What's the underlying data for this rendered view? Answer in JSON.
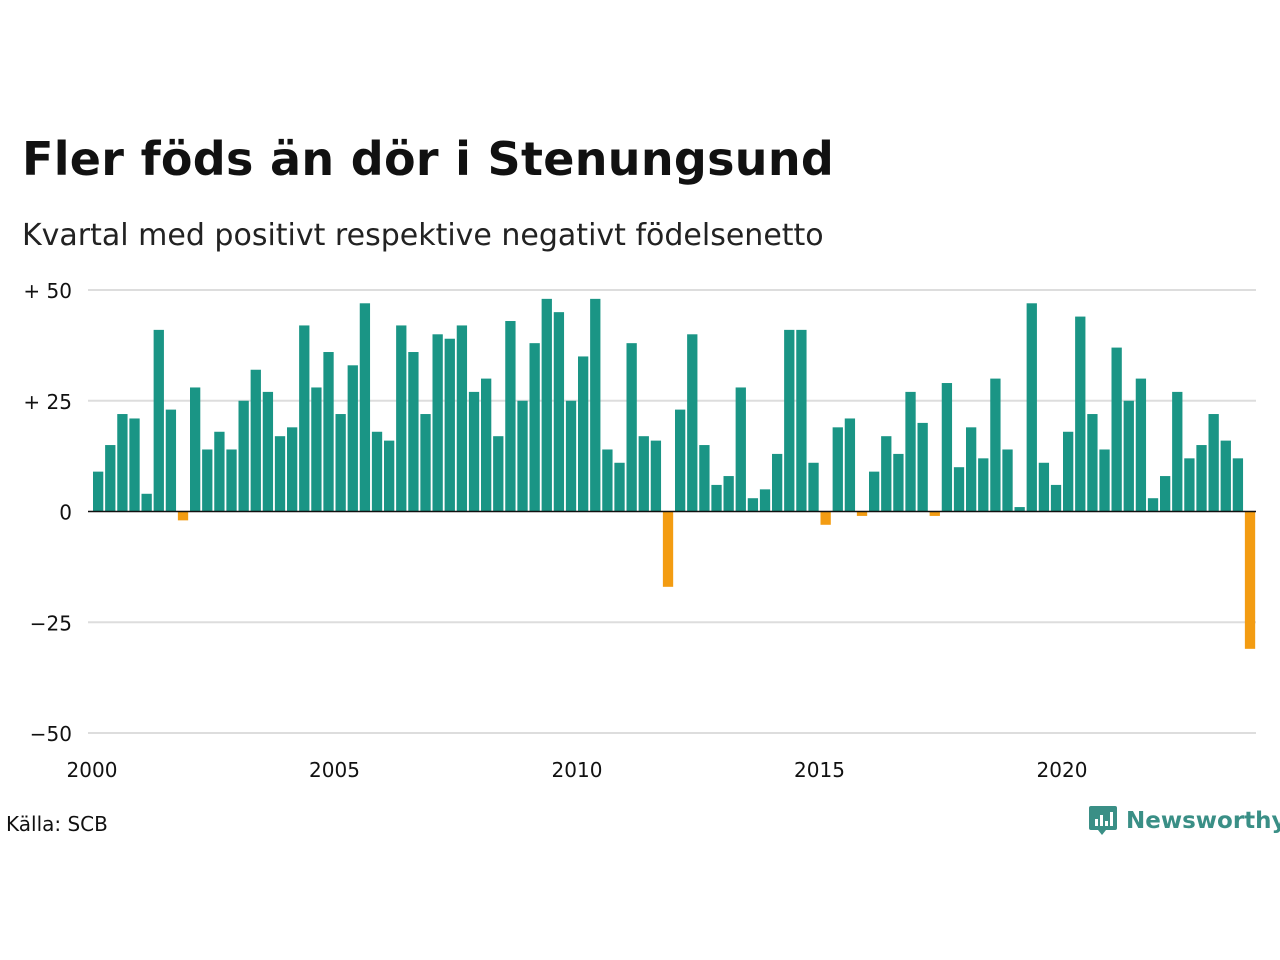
{
  "title": "Fler föds än dör i Stenungsund",
  "subtitle": "Kvartal med positivt respektive negativt födelsenetto",
  "source": "Källa: SCB",
  "brand": "Newsworthy",
  "colors": {
    "positive": "#1a9585",
    "negative": "#f39c12",
    "grid": "#dddddd",
    "baseline": "#111111",
    "brand": "#3a8f86"
  },
  "chart_data": {
    "type": "bar",
    "xlabel": "",
    "ylabel": "",
    "ylim": [
      -50,
      50
    ],
    "y_ticks": [
      {
        "value": 50,
        "label": "+ 50"
      },
      {
        "value": 25,
        "label": "+ 25"
      },
      {
        "value": 0,
        "label": "0"
      },
      {
        "value": -25,
        "label": "−25"
      },
      {
        "value": -50,
        "label": "−50"
      }
    ],
    "x_ticks": [
      "2000",
      "2005",
      "2010",
      "2015",
      "2020"
    ],
    "x_start_year": 2000,
    "periods_per_year": 4,
    "grid": true,
    "values": [
      9,
      15,
      22,
      21,
      4,
      41,
      23,
      -2,
      28,
      14,
      18,
      14,
      25,
      32,
      27,
      17,
      19,
      42,
      28,
      36,
      22,
      33,
      47,
      18,
      16,
      42,
      36,
      22,
      40,
      39,
      42,
      27,
      30,
      17,
      43,
      25,
      38,
      48,
      45,
      25,
      35,
      48,
      14,
      11,
      38,
      17,
      16,
      -17,
      23,
      40,
      15,
      6,
      8,
      28,
      3,
      5,
      13,
      41,
      41,
      11,
      -3,
      19,
      21,
      -1,
      9,
      17,
      13,
      27,
      20,
      -1,
      29,
      10,
      19,
      12,
      30,
      14,
      1,
      47,
      11,
      6,
      18,
      44,
      22,
      14,
      37,
      25,
      30,
      3,
      8,
      27,
      12,
      15,
      22,
      16,
      12,
      -31
    ]
  }
}
